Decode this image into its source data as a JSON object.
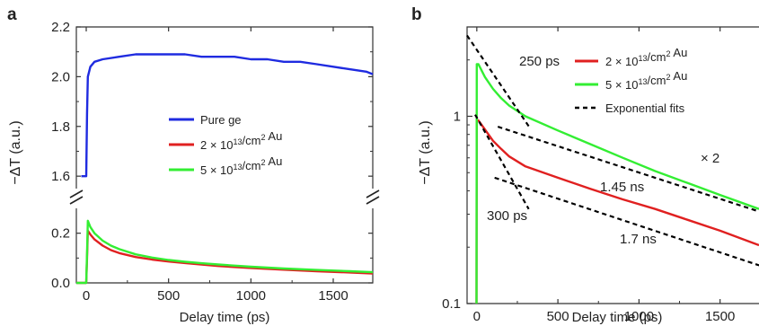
{
  "chart_data": [
    {
      "panel_label": "a",
      "type": "line",
      "xlabel": "Delay time (ps)",
      "ylabel": "−ΔT (a.u.)",
      "xlim": [
        -60,
        1740
      ],
      "x_ticks": [
        0,
        500,
        1000,
        1500
      ],
      "axis_break": true,
      "upper_ylim": [
        1.55,
        2.2
      ],
      "upper_y_ticks": [
        "1.6",
        "1.8",
        "2.0",
        "2.2"
      ],
      "lower_ylim": [
        0.0,
        0.3
      ],
      "lower_y_ticks": [
        "0.0",
        "0.2"
      ],
      "legend_position": "center-right",
      "grid": false,
      "series": [
        {
          "name": "Pure ge",
          "color": "#1f2be0",
          "axis": "upper",
          "x": [
            -30,
            -10,
            0,
            5,
            10,
            25,
            50,
            100,
            200,
            300,
            400,
            500,
            600,
            700,
            800,
            900,
            1000,
            1100,
            1200,
            1300,
            1400,
            1500,
            1600,
            1700,
            1740
          ],
          "y": [
            1.6,
            1.6,
            1.6,
            1.85,
            2.0,
            2.04,
            2.06,
            2.07,
            2.08,
            2.09,
            2.09,
            2.09,
            2.09,
            2.08,
            2.08,
            2.08,
            2.07,
            2.07,
            2.06,
            2.06,
            2.05,
            2.04,
            2.03,
            2.02,
            2.01
          ]
        },
        {
          "name": "2 × 10¹³/cm² Au",
          "color": "#e02020",
          "axis": "lower",
          "x": [
            -60,
            -10,
            0,
            5,
            10,
            25,
            50,
            100,
            150,
            200,
            300,
            400,
            500,
            600,
            700,
            800,
            1000,
            1200,
            1400,
            1600,
            1740
          ],
          "y": [
            0.0,
            0.0,
            0.0,
            0.1,
            0.21,
            0.195,
            0.175,
            0.15,
            0.132,
            0.12,
            0.104,
            0.094,
            0.086,
            0.08,
            0.074,
            0.068,
            0.06,
            0.053,
            0.047,
            0.042,
            0.038
          ]
        },
        {
          "name": "5 × 10¹³/cm² Au",
          "color": "#33ee33",
          "axis": "lower",
          "x": [
            -60,
            -10,
            0,
            5,
            10,
            25,
            50,
            100,
            150,
            200,
            300,
            400,
            500,
            600,
            700,
            800,
            1000,
            1200,
            1400,
            1600,
            1740
          ],
          "y": [
            0.0,
            0.0,
            0.0,
            0.12,
            0.25,
            0.225,
            0.2,
            0.17,
            0.15,
            0.136,
            0.115,
            0.102,
            0.092,
            0.085,
            0.079,
            0.074,
            0.065,
            0.058,
            0.052,
            0.047,
            0.043
          ]
        }
      ]
    },
    {
      "panel_label": "b",
      "type": "line",
      "xlabel": "Delay time (ps)",
      "ylabel": "−ΔT (a.u.)",
      "yscale": "log",
      "xlim": [
        -60,
        1740
      ],
      "x_ticks": [
        0,
        500,
        1000,
        1500
      ],
      "ylim": [
        0.1,
        3
      ],
      "y_ticks": [
        "0.1",
        "1"
      ],
      "legend_position": "top-right",
      "grid": false,
      "annotations": [
        "250 ps",
        "300 ps",
        "1.45 ns",
        "1.7 ns",
        "× 2"
      ],
      "series": [
        {
          "name": "2 × 10¹³/cm² Au",
          "color": "#e02020",
          "x": [
            -2,
            0,
            10,
            50,
            100,
            150,
            200,
            300,
            500,
            700,
            900,
            1100,
            1300,
            1500,
            1740
          ],
          "y": [
            0.1,
            0.95,
            0.95,
            0.85,
            0.74,
            0.67,
            0.61,
            0.54,
            0.47,
            0.41,
            0.36,
            0.32,
            0.28,
            0.245,
            0.205
          ]
        },
        {
          "name": "5 × 10¹³/cm² Au",
          "color": "#33ee33",
          "x": [
            -2,
            0,
            10,
            50,
            100,
            150,
            200,
            300,
            500,
            700,
            900,
            1100,
            1300,
            1500,
            1740
          ],
          "y": [
            0.1,
            1.9,
            1.9,
            1.62,
            1.4,
            1.25,
            1.14,
            1.0,
            0.84,
            0.71,
            0.6,
            0.51,
            0.44,
            0.38,
            0.32
          ]
        },
        {
          "name": "Exponential fits",
          "color": "#000000",
          "style": "dashed",
          "segments": [
            {
              "x": [
                -60,
                330
              ],
              "y": [
                2.7,
                0.86
              ]
            },
            {
              "x": [
                130,
                1740
              ],
              "y": [
                0.88,
                0.31
              ]
            },
            {
              "x": [
                -10,
                320
              ],
              "y": [
                1.02,
                0.32
              ]
            },
            {
              "x": [
                110,
                1740
              ],
              "y": [
                0.47,
                0.16
              ]
            }
          ]
        }
      ]
    }
  ]
}
